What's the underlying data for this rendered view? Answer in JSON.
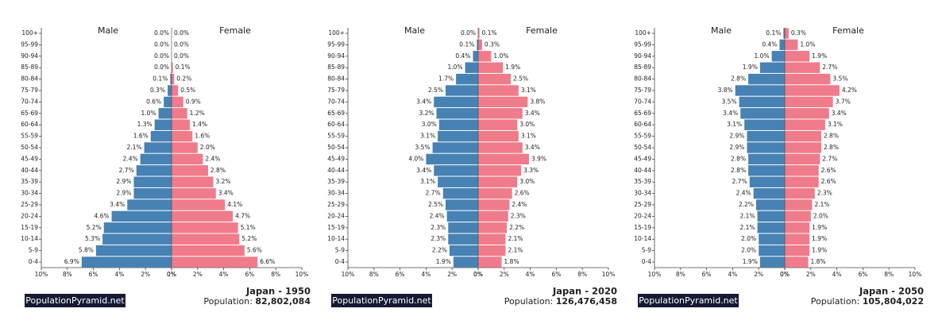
{
  "chart_data": [
    {
      "type": "pyramid",
      "title": "Japan - 1950",
      "population_label": "Population:",
      "population": "82,802,084",
      "source": "PopulationPyramid.net",
      "categories": [
        "0-4",
        "5-9",
        "10-14",
        "15-19",
        "20-24",
        "25-29",
        "30-34",
        "35-39",
        "40-44",
        "45-49",
        "50-54",
        "55-59",
        "60-64",
        "65-69",
        "70-74",
        "75-79",
        "80-84",
        "85-89",
        "90-94",
        "95-99",
        "100+"
      ],
      "series": [
        {
          "name": "Male",
          "color": "#4682b4",
          "values": [
            6.9,
            5.8,
            5.3,
            5.2,
            4.6,
            3.4,
            2.9,
            2.9,
            2.7,
            2.4,
            2.1,
            1.6,
            1.3,
            1.0,
            0.6,
            0.3,
            0.1,
            0.0,
            0.0,
            0.0,
            0.0
          ],
          "value_labels": [
            "6.9%",
            "5.8%",
            "5.3%",
            "5.2%",
            "4.6%",
            "3.4%",
            "2.9%",
            "2.9%",
            "2.7%",
            "2.4%",
            "2.1%",
            "1.6%",
            "1.3%",
            "1.0%",
            "0.6%",
            "0.3%",
            "0.1%",
            "0.0%",
            "0.0%",
            "0.0%",
            "0.0%"
          ]
        },
        {
          "name": "Female",
          "color": "#f07b8a",
          "values": [
            6.6,
            5.6,
            5.2,
            5.1,
            4.7,
            4.1,
            3.4,
            3.2,
            2.8,
            2.4,
            2.0,
            1.6,
            1.4,
            1.2,
            0.9,
            0.5,
            0.2,
            0.1,
            0.0,
            0.0,
            0.0
          ],
          "value_labels": [
            "6.6%",
            "5.6%",
            "5.2%",
            "5.1%",
            "4.7%",
            "4.1%",
            "3.4%",
            "3.2%",
            "2.8%",
            "2.4%",
            "2.0%",
            "1.6%",
            "1.4%",
            "1.2%",
            "0.9%",
            "0.5%",
            "0.2%",
            "0.1%",
            "0.0%",
            "0.0%",
            "0.0%"
          ]
        }
      ],
      "xlim": [
        0,
        10
      ],
      "xticks": [
        {
          "value": 0,
          "label": "0%"
        },
        {
          "value": 2,
          "label": "2%"
        },
        {
          "value": 4,
          "label": "4%"
        },
        {
          "value": 6,
          "label": "6%"
        },
        {
          "value": 8,
          "label": "8%"
        },
        {
          "value": 10,
          "label": "10%"
        }
      ]
    },
    {
      "type": "pyramid",
      "title": "Japan - 2020",
      "population_label": "Population:",
      "population": "126,476,458",
      "source": "PopulationPyramid.net",
      "categories": [
        "0-4",
        "5-9",
        "10-14",
        "15-19",
        "20-24",
        "25-29",
        "30-34",
        "35-39",
        "40-44",
        "45-49",
        "50-54",
        "55-59",
        "60-64",
        "65-69",
        "70-74",
        "75-79",
        "80-84",
        "85-89",
        "90-94",
        "95-99",
        "100+"
      ],
      "series": [
        {
          "name": "Male",
          "color": "#4682b4",
          "values": [
            1.9,
            2.2,
            2.3,
            2.3,
            2.4,
            2.5,
            2.7,
            3.1,
            3.4,
            4.0,
            3.5,
            3.1,
            3.0,
            3.2,
            3.4,
            2.5,
            1.7,
            1.0,
            0.4,
            0.1,
            0.0
          ],
          "value_labels": [
            "1.9%",
            "2.2%",
            "2.3%",
            "2.3%",
            "2.4%",
            "2.5%",
            "2.7%",
            "3.1%",
            "3.4%",
            "4.0%",
            "3.5%",
            "3.1%",
            "3.0%",
            "3.2%",
            "3.4%",
            "2.5%",
            "1.7%",
            "1.0%",
            "0.4%",
            "0.1%",
            "0.0%"
          ]
        },
        {
          "name": "Female",
          "color": "#f07b8a",
          "values": [
            1.8,
            2.1,
            2.1,
            2.2,
            2.3,
            2.4,
            2.6,
            3.0,
            3.3,
            3.9,
            3.4,
            3.1,
            3.0,
            3.4,
            3.8,
            3.1,
            2.5,
            1.9,
            1.0,
            0.3,
            0.1
          ],
          "value_labels": [
            "1.8%",
            "2.1%",
            "2.1%",
            "2.2%",
            "2.3%",
            "2.4%",
            "2.6%",
            "3.0%",
            "3.3%",
            "3.9%",
            "3.4%",
            "3.1%",
            "3.0%",
            "3.4%",
            "3.8%",
            "3.1%",
            "2.5%",
            "1.9%",
            "1.0%",
            "0.3%",
            "0.1%"
          ]
        }
      ],
      "xlim": [
        0,
        10
      ],
      "xticks": [
        {
          "value": 0,
          "label": "0%"
        },
        {
          "value": 2,
          "label": "2%"
        },
        {
          "value": 4,
          "label": "4%"
        },
        {
          "value": 6,
          "label": "6%"
        },
        {
          "value": 8,
          "label": "8%"
        },
        {
          "value": 10,
          "label": "10%"
        }
      ]
    },
    {
      "type": "pyramid",
      "title": "Japan - 2050",
      "population_label": "Population:",
      "population": "105,804,022",
      "source": "PopulationPyramid.net",
      "categories": [
        "0-4",
        "5-9",
        "10-14",
        "15-19",
        "20-24",
        "25-29",
        "30-34",
        "35-39",
        "40-44",
        "45-49",
        "50-54",
        "55-59",
        "60-64",
        "65-69",
        "70-74",
        "75-79",
        "80-84",
        "85-89",
        "90-94",
        "95-99",
        "100+"
      ],
      "series": [
        {
          "name": "Male",
          "color": "#4682b4",
          "values": [
            1.9,
            2.0,
            2.0,
            2.1,
            2.1,
            2.2,
            2.4,
            2.7,
            2.8,
            2.8,
            2.9,
            2.9,
            3.1,
            3.4,
            3.5,
            3.8,
            2.8,
            1.9,
            1.0,
            0.4,
            0.1
          ],
          "value_labels": [
            "1.9%",
            "2.0%",
            "2.0%",
            "2.1%",
            "2.1%",
            "2.2%",
            "2.4%",
            "2.7%",
            "2.8%",
            "2.8%",
            "2.9%",
            "2.9%",
            "3.1%",
            "3.4%",
            "3.5%",
            "3.8%",
            "2.8%",
            "1.9%",
            "1.0%",
            "0.4%",
            "0.1%"
          ]
        },
        {
          "name": "Female",
          "color": "#f07b8a",
          "values": [
            1.8,
            1.9,
            1.9,
            1.9,
            2.0,
            2.1,
            2.3,
            2.6,
            2.6,
            2.7,
            2.8,
            2.8,
            3.1,
            3.4,
            3.7,
            4.2,
            3.5,
            2.7,
            1.9,
            1.0,
            0.3
          ],
          "value_labels": [
            "1.8%",
            "1.9%",
            "1.9%",
            "1.9%",
            "2.0%",
            "2.1%",
            "2.3%",
            "2.6%",
            "2.6%",
            "2.7%",
            "2.8%",
            "2.8%",
            "3.1%",
            "3.4%",
            "3.7%",
            "4.2%",
            "3.5%",
            "2.7%",
            "1.9%",
            "1.0%",
            "0.3%"
          ]
        }
      ],
      "xlim": [
        0,
        10
      ],
      "xticks": [
        {
          "value": 0,
          "label": "0%"
        },
        {
          "value": 2,
          "label": "2%"
        },
        {
          "value": 4,
          "label": "4%"
        },
        {
          "value": 6,
          "label": "6%"
        },
        {
          "value": 8,
          "label": "8%"
        },
        {
          "value": 10,
          "label": "10%"
        }
      ]
    }
  ]
}
